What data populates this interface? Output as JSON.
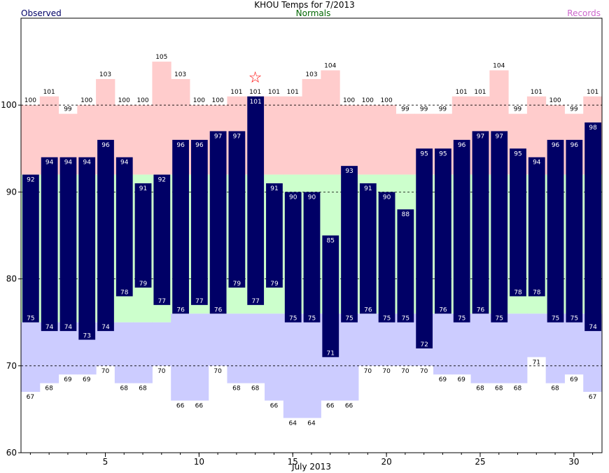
{
  "chart_data": {
    "type": "bar",
    "title": "KHOU Temps for 7/2013",
    "legend": {
      "observed": "Observed",
      "normals": "Normals",
      "records": "Records"
    },
    "xlabel": "July 2013",
    "ylim": [
      60,
      110
    ],
    "yticks": [
      60,
      70,
      80,
      90,
      100
    ],
    "xticks": [
      5,
      10,
      15,
      20,
      25,
      30
    ],
    "grid": "dashed at 70, 80, 90, 100",
    "days": [
      1,
      2,
      3,
      4,
      5,
      6,
      7,
      8,
      9,
      10,
      11,
      12,
      13,
      14,
      15,
      16,
      17,
      18,
      19,
      20,
      21,
      22,
      23,
      24,
      25,
      26,
      27,
      28,
      29,
      30,
      31
    ],
    "observed_high": [
      92,
      94,
      94,
      94,
      96,
      94,
      91,
      92,
      96,
      96,
      97,
      97,
      101,
      91,
      90,
      90,
      85,
      93,
      91,
      90,
      88,
      95,
      95,
      96,
      97,
      97,
      95,
      94,
      96,
      96,
      98
    ],
    "observed_low": [
      75,
      74,
      74,
      73,
      74,
      78,
      79,
      77,
      76,
      77,
      76,
      79,
      77,
      79,
      75,
      75,
      71,
      75,
      76,
      75,
      75,
      72,
      76,
      75,
      76,
      75,
      78,
      78,
      75,
      75,
      74
    ],
    "normal_high": [
      92,
      92,
      92,
      92,
      92,
      92,
      92,
      92,
      92,
      92,
      92,
      92,
      92,
      92,
      92,
      92,
      92,
      92,
      92,
      92,
      92,
      92,
      92,
      92,
      92,
      92,
      92,
      92,
      92,
      92,
      92
    ],
    "normal_low": [
      75,
      75,
      75,
      75,
      75,
      75,
      75,
      75,
      76,
      76,
      76,
      76,
      76,
      76,
      76,
      76,
      76,
      76,
      76,
      76,
      76,
      76,
      76,
      76,
      76,
      76,
      76,
      76,
      76,
      76,
      76
    ],
    "record_high": [
      100,
      101,
      99,
      100,
      103,
      100,
      100,
      105,
      103,
      100,
      100,
      101,
      101,
      101,
      101,
      103,
      104,
      100,
      100,
      100,
      99,
      99,
      99,
      101,
      101,
      104,
      99,
      101,
      100,
      99,
      101
    ],
    "record_low": [
      67,
      68,
      69,
      69,
      70,
      68,
      68,
      70,
      66,
      66,
      70,
      68,
      68,
      66,
      64,
      64,
      66,
      66,
      70,
      70,
      70,
      70,
      69,
      69,
      68,
      68,
      68,
      71,
      68,
      69,
      67
    ],
    "record_high_marker": {
      "day": 13,
      "symbol": "☆",
      "color": "#ff0000"
    },
    "colors": {
      "observed": "#000066",
      "normal": "#ccffcc",
      "record_high": "#ffcccc",
      "record_low": "#ccccff",
      "observed_text": "#ffffff"
    }
  }
}
